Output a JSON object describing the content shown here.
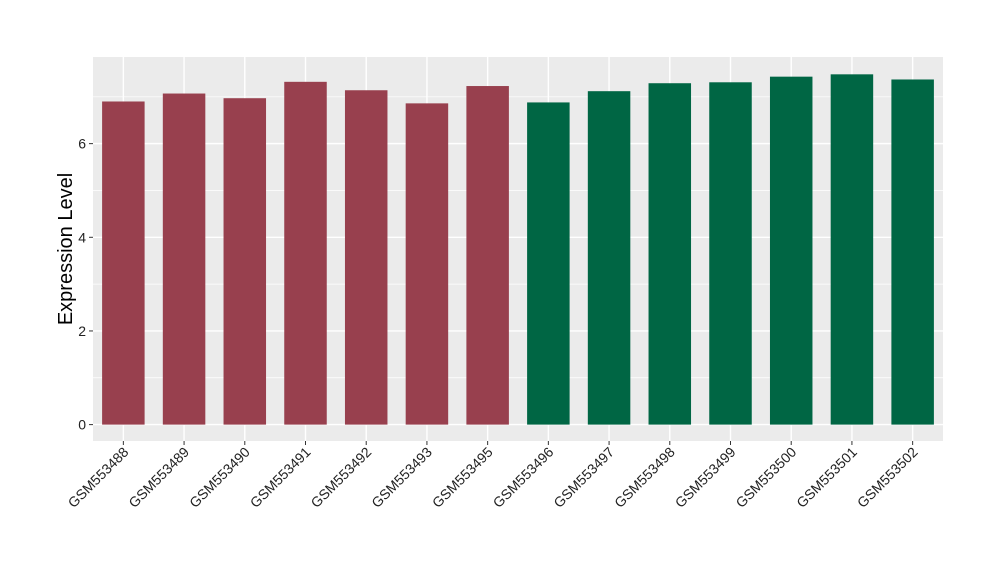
{
  "chart_data": {
    "type": "bar",
    "title": "",
    "xlabel": "",
    "ylabel": "Expression Level",
    "ylim": [
      -0.35,
      7.85
    ],
    "yticks": [
      0,
      2,
      4,
      6
    ],
    "grid": true,
    "legend": "none",
    "categories": [
      "GSM553488",
      "GSM553489",
      "GSM553490",
      "GSM553491",
      "GSM553492",
      "GSM553493",
      "GSM553495",
      "GSM553496",
      "GSM553497",
      "GSM553498",
      "GSM553499",
      "GSM553500",
      "GSM553501",
      "GSM553502"
    ],
    "values": [
      6.9,
      7.07,
      6.97,
      7.32,
      7.14,
      6.86,
      7.23,
      6.88,
      7.12,
      7.29,
      7.31,
      7.43,
      7.48,
      7.37
    ],
    "group_colors": [
      "#98404e",
      "#98404e",
      "#98404e",
      "#98404e",
      "#98404e",
      "#98404e",
      "#98404e",
      "#006644",
      "#006644",
      "#006644",
      "#006644",
      "#006644",
      "#006644",
      "#006644"
    ],
    "panel_color": "#ebebeb",
    "grid_color": "#ffffff"
  }
}
